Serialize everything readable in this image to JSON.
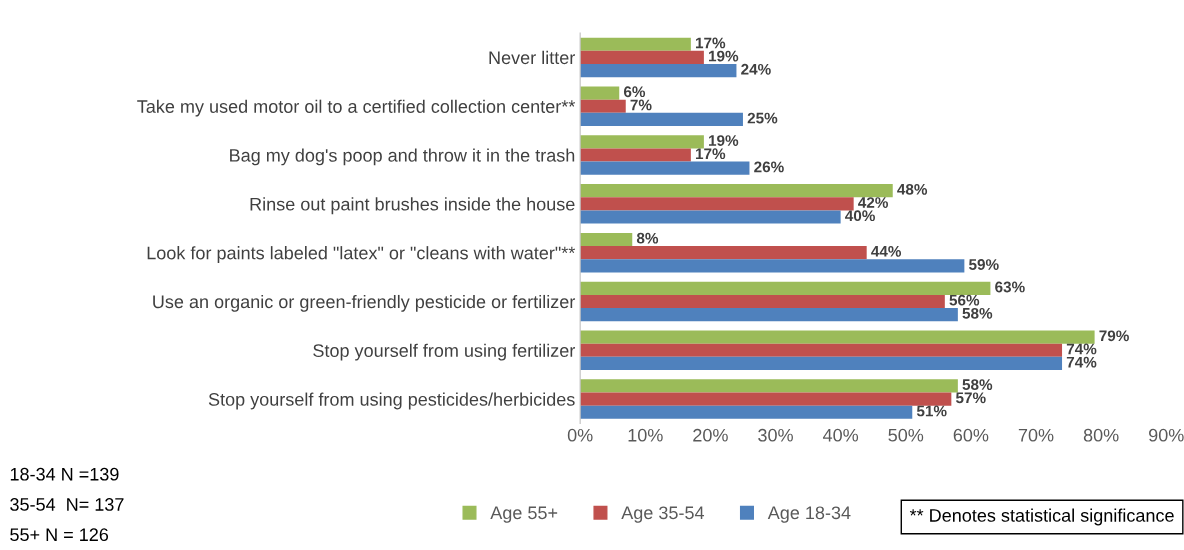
{
  "chart_data": {
    "type": "bar",
    "orientation": "horizontal",
    "categories": [
      "Never litter",
      "Take my used motor oil to a certified collection center**",
      "Bag my dog's poop and throw it in the trash",
      "Rinse out paint brushes inside the house",
      "Look for paints labeled \"latex\" or \"cleans with water\"**",
      "Use an organic or green-friendly pesticide or fertilizer",
      "Stop yourself from using fertilizer",
      "Stop yourself from using pesticides/herbicides"
    ],
    "series": [
      {
        "name": "Age 55+",
        "color": "#9bbb59",
        "values": [
          17,
          6,
          19,
          48,
          8,
          63,
          79,
          58
        ],
        "value_labels": [
          "17%",
          "6%",
          "19%",
          "48%",
          "8%",
          "63%",
          "79%",
          "58%"
        ]
      },
      {
        "name": "Age 35-54",
        "color": "#c0504d",
        "values": [
          19,
          7,
          17,
          42,
          44,
          56,
          74,
          57
        ],
        "value_labels": [
          "19%",
          "7%",
          "17%",
          "42%",
          "44%",
          "56%",
          "74%",
          "57%"
        ]
      },
      {
        "name": "Age 18-34",
        "color": "#4f81bd",
        "values": [
          24,
          25,
          26,
          40,
          59,
          58,
          74,
          51
        ],
        "value_labels": [
          "24%",
          "25%",
          "26%",
          "40%",
          "59%",
          "58%",
          "74%",
          "51%"
        ]
      }
    ],
    "xlim": [
      0,
      90
    ],
    "xticks": [
      {
        "value": 0,
        "label": "0%"
      },
      {
        "value": 10,
        "label": "10%"
      },
      {
        "value": 20,
        "label": "20%"
      },
      {
        "value": 30,
        "label": "30%"
      },
      {
        "value": 40,
        "label": "40%"
      },
      {
        "value": 50,
        "label": "50%"
      },
      {
        "value": 60,
        "label": "60%"
      },
      {
        "value": 70,
        "label": "70%"
      },
      {
        "value": 80,
        "label": "80%"
      },
      {
        "value": 90,
        "label": "90%"
      }
    ],
    "grid": false,
    "legend": "bottom",
    "annotations": [
      "18-34 N =139",
      "35-54  N= 137",
      "55+ N = 126",
      "** Denotes statistical significance"
    ]
  }
}
